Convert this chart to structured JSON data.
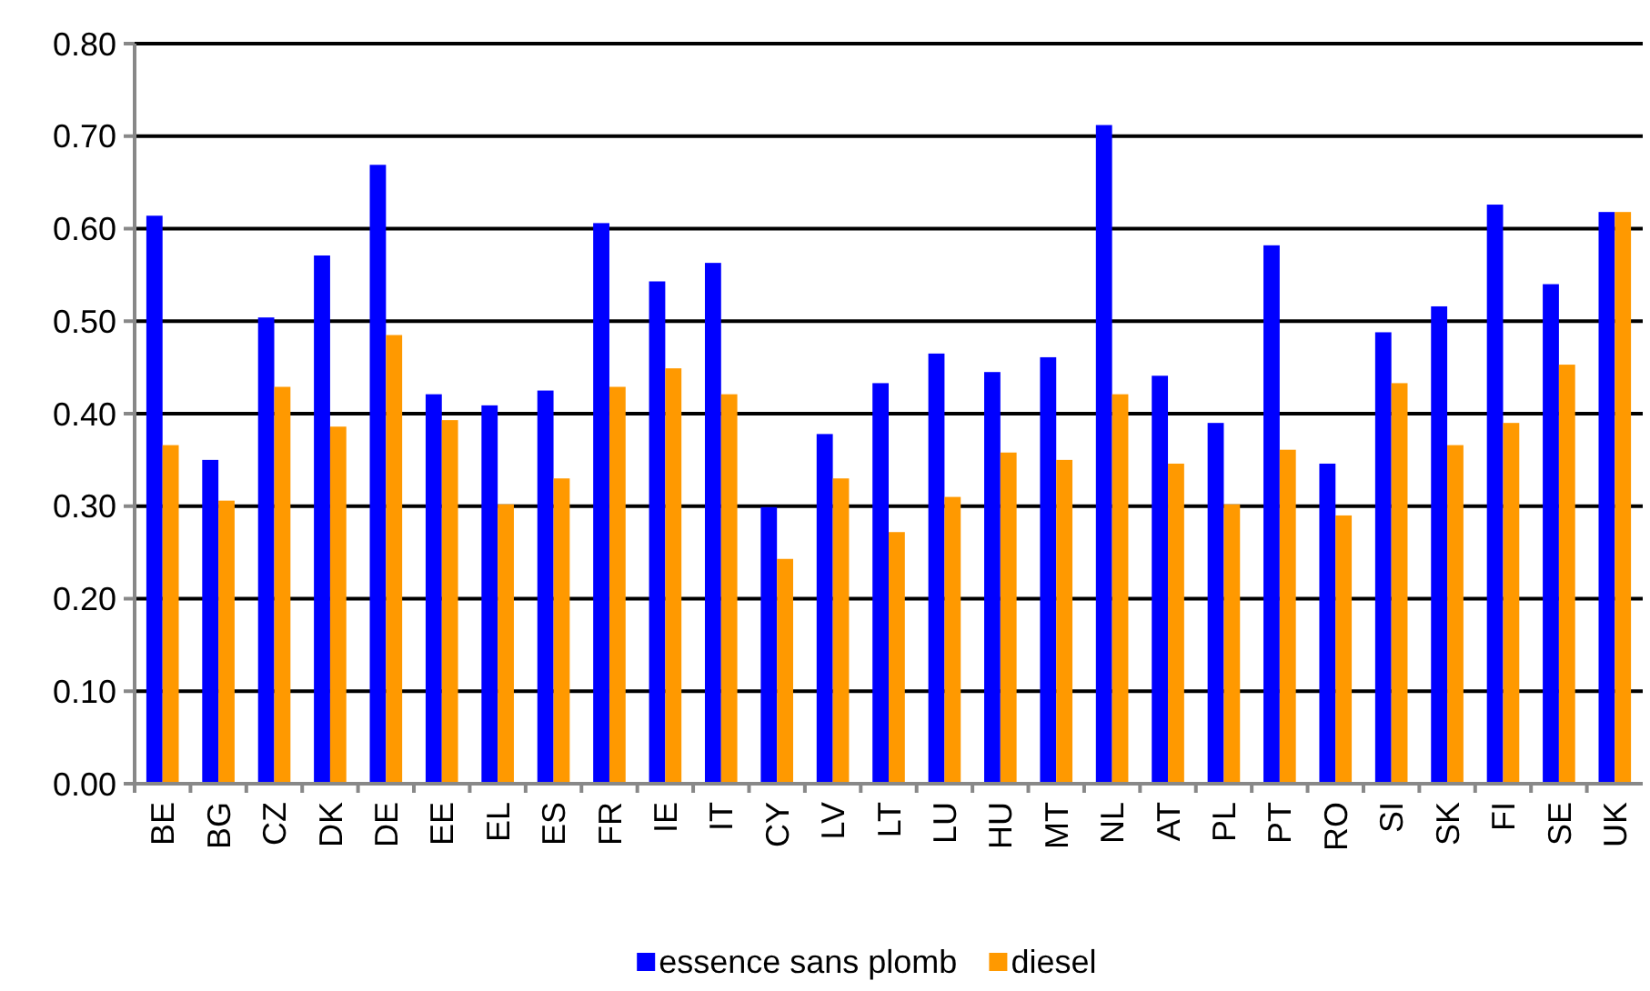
{
  "chart_data": {
    "type": "bar",
    "categories": [
      "BE",
      "BG",
      "CZ",
      "DK",
      "DE",
      "EE",
      "EL",
      "ES",
      "FR",
      "IE",
      "IT",
      "CY",
      "LV",
      "LT",
      "LU",
      "HU",
      "MT",
      "NL",
      "AT",
      "PL",
      "PT",
      "RO",
      "SI",
      "SK",
      "FI",
      "SE",
      "UK"
    ],
    "series": [
      {
        "name": "essence sans plomb",
        "color": "#0000ff",
        "values": [
          0.614,
          0.35,
          0.504,
          0.571,
          0.669,
          0.421,
          0.409,
          0.425,
          0.606,
          0.543,
          0.563,
          0.299,
          0.378,
          0.433,
          0.465,
          0.445,
          0.461,
          0.712,
          0.441,
          0.39,
          0.582,
          0.346,
          0.488,
          0.516,
          0.626,
          0.54,
          0.618
        ]
      },
      {
        "name": "diesel",
        "color": "#ff9900",
        "values": [
          0.366,
          0.306,
          0.429,
          0.386,
          0.485,
          0.393,
          0.302,
          0.33,
          0.429,
          0.449,
          0.421,
          0.243,
          0.33,
          0.272,
          0.31,
          0.358,
          0.35,
          0.421,
          0.346,
          0.302,
          0.361,
          0.29,
          0.433,
          0.366,
          0.39,
          0.453,
          0.618
        ]
      }
    ],
    "ylim": [
      0,
      0.8
    ],
    "yticks": [
      {
        "value": 0,
        "label": "0.00"
      },
      {
        "value": 0.1,
        "label": "0.10"
      },
      {
        "value": 0.2,
        "label": "0.20"
      },
      {
        "value": 0.3,
        "label": "0.30"
      },
      {
        "value": 0.4,
        "label": "0.40"
      },
      {
        "value": 0.5,
        "label": "0.50"
      },
      {
        "value": 0.6,
        "label": "0.60"
      },
      {
        "value": 0.7,
        "label": "0.70"
      },
      {
        "value": 0.8,
        "label": "0.80"
      }
    ],
    "grid": "y",
    "legend": "bottom"
  }
}
